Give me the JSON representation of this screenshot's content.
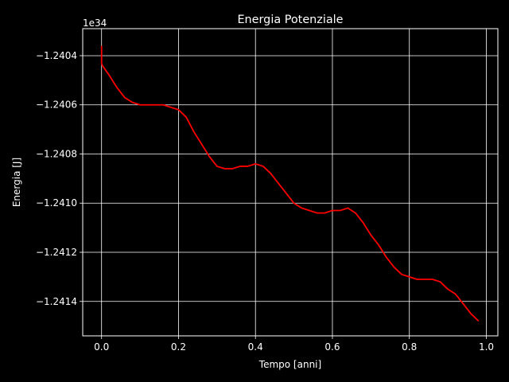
{
  "chart_data": {
    "type": "line",
    "title": "Energia Potenziale",
    "xlabel": "Tempo [anni]",
    "ylabel": "Energia [J]",
    "offset_text": "1e34",
    "xlim": [
      -0.049,
      1.03
    ],
    "ylim": [
      -1.24154,
      -1.24029
    ],
    "grid": true,
    "background": "#000000",
    "foreground": "#ffffff",
    "xticks": [
      0.0,
      0.2,
      0.4,
      0.6,
      0.8,
      1.0
    ],
    "xtick_labels": [
      "0.0",
      "0.2",
      "0.4",
      "0.6",
      "0.8",
      "1.0"
    ],
    "yticks": [
      -1.2404,
      -1.2406,
      -1.2408,
      -1.241,
      -1.2412,
      -1.2414
    ],
    "ytick_labels": [
      "−1.2404",
      "−1.2406",
      "−1.2408",
      "−1.2410",
      "−1.2412",
      "−1.2414"
    ],
    "series": [
      {
        "name": "Energia Potenziale",
        "color": "#ff0000",
        "x": [
          0.0,
          0.0,
          0.0,
          0.002,
          0.02,
          0.04,
          0.06,
          0.08,
          0.1,
          0.12,
          0.14,
          0.16,
          0.18,
          0.2,
          0.22,
          0.24,
          0.26,
          0.28,
          0.3,
          0.32,
          0.34,
          0.36,
          0.38,
          0.4,
          0.42,
          0.44,
          0.46,
          0.48,
          0.5,
          0.52,
          0.54,
          0.56,
          0.58,
          0.6,
          0.62,
          0.64,
          0.66,
          0.68,
          0.7,
          0.72,
          0.74,
          0.76,
          0.78,
          0.8,
          0.82,
          0.84,
          0.86,
          0.88,
          0.9,
          0.92,
          0.94,
          0.96,
          0.98
        ],
        "y": [
          -1.24036,
          -1.2404,
          -1.24043,
          -1.24044,
          -1.24048,
          -1.24053,
          -1.24057,
          -1.24059,
          -1.2406,
          -1.2406,
          -1.2406,
          -1.2406,
          -1.24061,
          -1.24062,
          -1.24065,
          -1.24071,
          -1.24076,
          -1.24081,
          -1.24085,
          -1.24086,
          -1.24086,
          -1.24085,
          -1.24085,
          -1.24084,
          -1.24085,
          -1.24088,
          -1.24092,
          -1.24096,
          -1.241,
          -1.24102,
          -1.24103,
          -1.24104,
          -1.24104,
          -1.24103,
          -1.24103,
          -1.24102,
          -1.24104,
          -1.24108,
          -1.24113,
          -1.24117,
          -1.24122,
          -1.24126,
          -1.24129,
          -1.2413,
          -1.24131,
          -1.24131,
          -1.24131,
          -1.24132,
          -1.24135,
          -1.24137,
          -1.24141,
          -1.24145,
          -1.24148
        ]
      }
    ]
  }
}
